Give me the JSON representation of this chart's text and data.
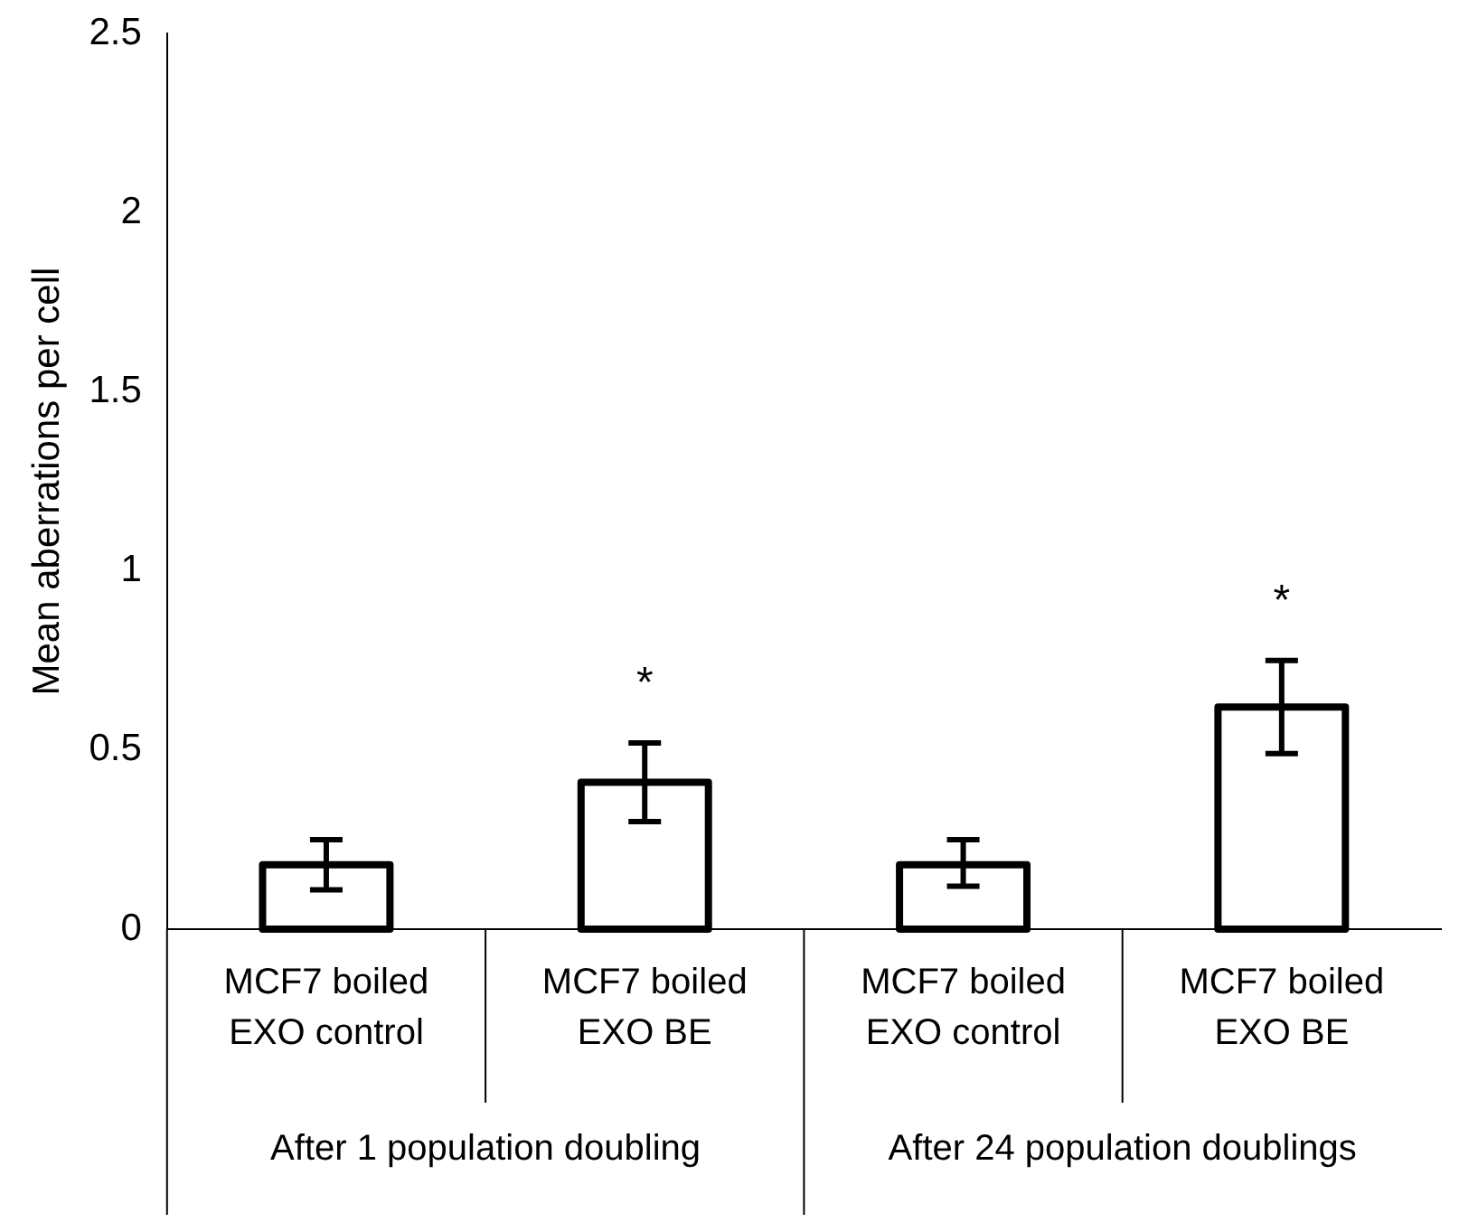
{
  "chart_data": {
    "type": "bar",
    "ylabel": "Mean aberrations per cell",
    "categories": [
      "MCF7 boiled EXO control",
      "MCF7 boiled EXO BE",
      "MCF7 boiled EXO control",
      "MCF7 boiled EXO BE"
    ],
    "values": [
      0.18,
      0.41,
      0.18,
      0.62
    ],
    "color": "#000000",
    "errors": [
      [
        0.11,
        0.25
      ],
      [
        0.3,
        0.52
      ],
      [
        0.12,
        0.25
      ],
      [
        0.49,
        0.75
      ]
    ],
    "value_labels": [
      null,
      "*",
      null,
      "*"
    ],
    "annotations": [
      "After 1 population doubling",
      "After 24 population doublings"
    ],
    "ylim": [
      0,
      2.5
    ],
    "yticks": [
      0,
      0.5,
      1,
      1.5,
      2,
      2.5
    ],
    "grid": false,
    "legend": false
  }
}
